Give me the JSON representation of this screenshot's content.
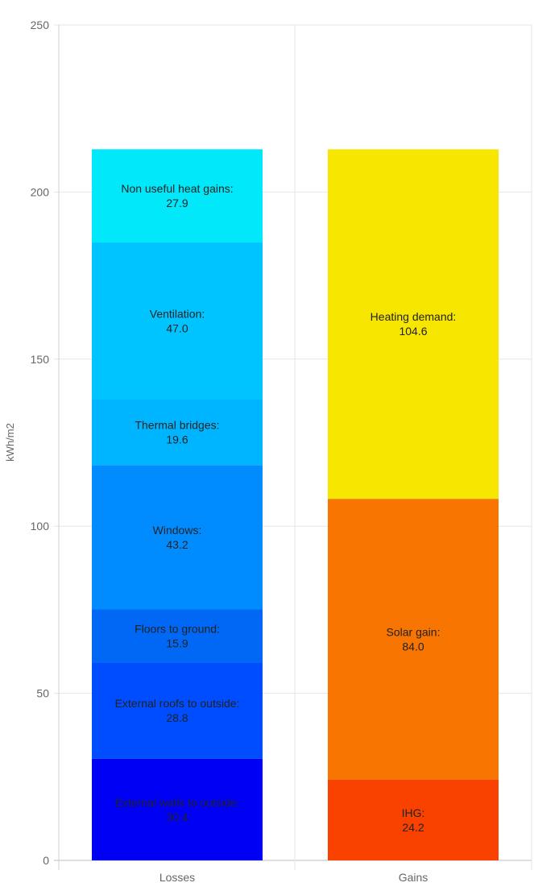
{
  "chart_data": {
    "type": "bar",
    "stacked": true,
    "ylabel": "kWh/m2",
    "ylim": [
      0,
      250
    ],
    "yticks": [
      0,
      50,
      100,
      150,
      200,
      250
    ],
    "grid": true,
    "legend": "none",
    "categories": [
      "Losses",
      "Gains"
    ],
    "stacks": [
      {
        "category": "Losses",
        "segments": [
          {
            "label": "External walls to outside:",
            "value": 30.4,
            "display": "30.4",
            "color": "#0000f5"
          },
          {
            "label": "External roofs to outside:",
            "value": 28.8,
            "display": "28.8",
            "color": "#004cff"
          },
          {
            "label": "Floors to ground:",
            "value": 15.9,
            "display": "15.9",
            "color": "#0068f5"
          },
          {
            "label": "Windows:",
            "value": 43.2,
            "display": "43.2",
            "color": "#008cff"
          },
          {
            "label": "Thermal bridges:",
            "value": 19.6,
            "display": "19.6",
            "color": "#00b5ff"
          },
          {
            "label": "Ventilation:",
            "value": 47.0,
            "display": "47.0",
            "color": "#00c4ff"
          },
          {
            "label": "Non useful heat gains:",
            "value": 27.9,
            "display": "27.9",
            "color": "#00e8fa"
          }
        ]
      },
      {
        "category": "Gains",
        "segments": [
          {
            "label": "IHG:",
            "value": 24.2,
            "display": "24.2",
            "color": "#fa4200"
          },
          {
            "label": "Solar gain:",
            "value": 84.0,
            "display": "84.0",
            "color": "#f77500"
          },
          {
            "label": "Heating demand:",
            "value": 104.6,
            "display": "104.6",
            "color": "#f7e600"
          }
        ]
      }
    ]
  }
}
